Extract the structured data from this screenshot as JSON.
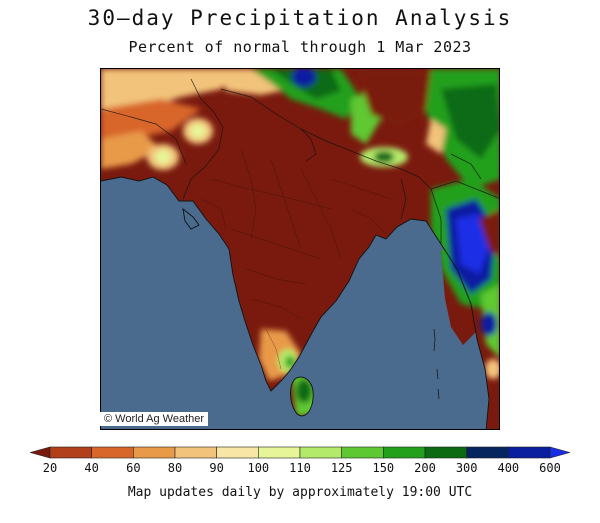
{
  "header": {
    "title": "30—day Precipitation Analysis",
    "subtitle": "Percent of normal through 1 Mar 2023"
  },
  "map": {
    "region": "South Asia",
    "credit": "© World Ag Weather",
    "ocean_color": "#4a6a8e",
    "dominant_land_color": "#7a1a0e"
  },
  "legend": {
    "labels": [
      "20",
      "40",
      "60",
      "80",
      "90",
      "100",
      "110",
      "125",
      "150",
      "200",
      "300",
      "400",
      "600"
    ],
    "colors": [
      "#7a1a0e",
      "#b2401a",
      "#d8662a",
      "#e89a48",
      "#f2c37a",
      "#f7e6a6",
      "#e6f598",
      "#b4ea6a",
      "#5ec832",
      "#22a01c",
      "#0c6a12",
      "#06245e",
      "#0a1ea0",
      "#1a2ee6"
    ],
    "footer": "Map updates daily by approximately 19:00 UTC"
  }
}
